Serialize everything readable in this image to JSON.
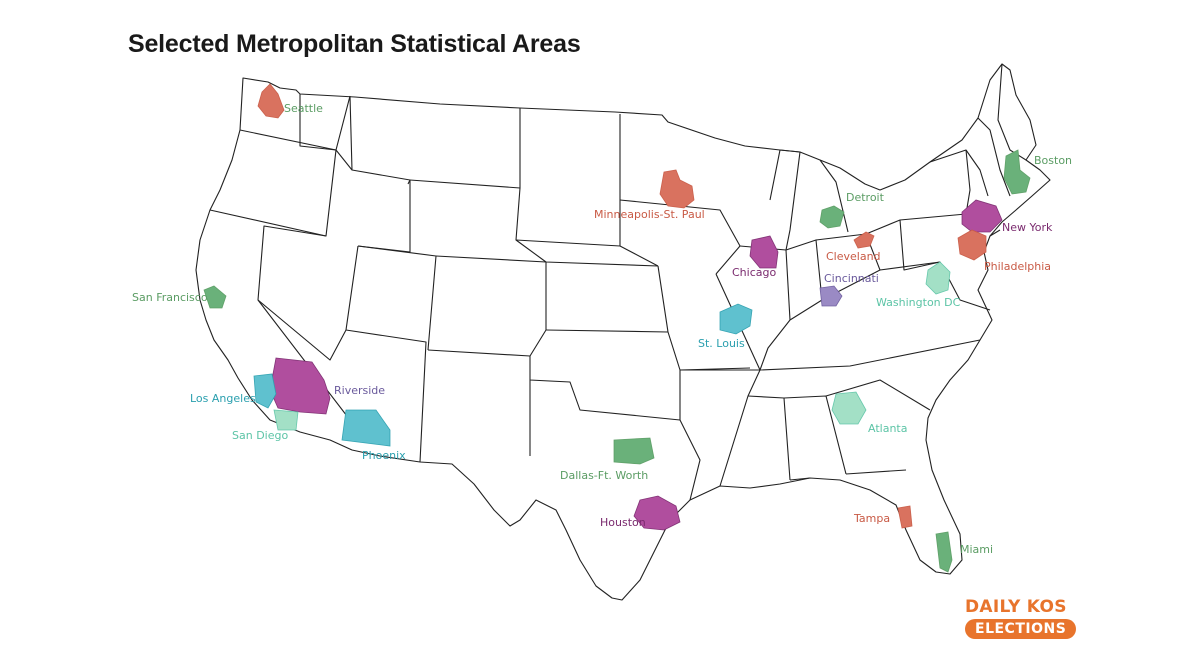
{
  "title": "Selected Metropolitan Statistical Areas",
  "colors": {
    "salmon": "#d9725f",
    "green": "#6ab17a",
    "purple": "#9e3f8d",
    "teal": "#5fc1cf",
    "mint": "#a3e0c6",
    "lavender": "#9a8ac4",
    "logo": "#e8742c"
  },
  "msas": [
    {
      "name": "Seattle",
      "color": "#5a9c63"
    },
    {
      "name": "Boston",
      "color": "#5a9c63"
    },
    {
      "name": "Minneapolis-St. Paul",
      "color": "#c85a45"
    },
    {
      "name": "Detroit",
      "color": "#5a9c63"
    },
    {
      "name": "New York",
      "color": "#7a2a6e"
    },
    {
      "name": "Cleveland",
      "color": "#c85a45"
    },
    {
      "name": "Chicago",
      "color": "#7a2a6e"
    },
    {
      "name": "Philadelphia",
      "color": "#c85a45"
    },
    {
      "name": "Cincinnati",
      "color": "#6a5a9c"
    },
    {
      "name": "San Francisco",
      "color": "#5a9c63"
    },
    {
      "name": "Washington DC",
      "color": "#5cc4a6"
    },
    {
      "name": "St. Louis",
      "color": "#2a9fae"
    },
    {
      "name": "Riverside",
      "color": "#6a5a9c"
    },
    {
      "name": "Los Angeles",
      "color": "#2a9fae"
    },
    {
      "name": "Atlanta",
      "color": "#5cc4a6"
    },
    {
      "name": "San Diego",
      "color": "#5cc4a6"
    },
    {
      "name": "Phoenix",
      "color": "#2a9fae"
    },
    {
      "name": "Dallas-Ft. Worth",
      "color": "#5a9c63"
    },
    {
      "name": "Houston",
      "color": "#7a2a6e"
    },
    {
      "name": "Tampa",
      "color": "#c85a45"
    },
    {
      "name": "Miami",
      "color": "#5a9c63"
    }
  ],
  "logo": {
    "line1": "DAILY KOS",
    "line2": "ELECTIONS"
  }
}
